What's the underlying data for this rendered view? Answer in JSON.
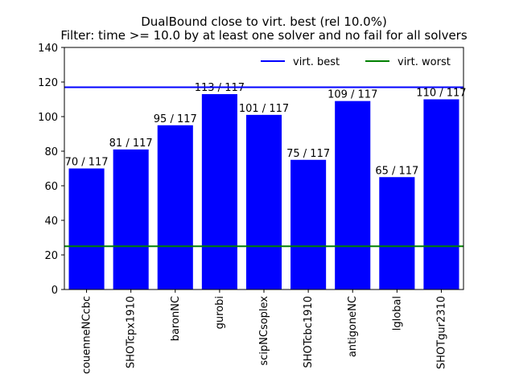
{
  "chart_data": {
    "type": "bar",
    "title": "DualBound close to virt. best (rel 10.0%)",
    "subtitle": "Filter: time >= 10.0 by at least one solver and no fail for all solvers",
    "categories": [
      "couenneNCcbc",
      "SHOTcpx1910",
      "baronNC",
      "gurobi",
      "scipNCsoplex",
      "SHOTcbc1910",
      "antigoneNC",
      "lglobal",
      "SHOTgur2310"
    ],
    "values": [
      70,
      81,
      95,
      113,
      101,
      75,
      109,
      65,
      110
    ],
    "bar_labels": [
      "70 / 117",
      "81 / 117",
      "95 / 117",
      "113 / 117",
      "101 / 117",
      "75 / 117",
      "109 / 117",
      "65 / 117",
      "110 / 117"
    ],
    "bar_color": "#0000ff",
    "ylim": [
      0,
      140
    ],
    "yticks": [
      "0",
      "20",
      "40",
      "60",
      "80",
      "100",
      "120",
      "140"
    ],
    "xlabel": "",
    "ylabel": "",
    "reference_lines": [
      {
        "name": "virt. best",
        "value": 117,
        "color": "#0000ff"
      },
      {
        "name": "virt. worst",
        "value": 25,
        "color": "#008000"
      }
    ],
    "legend_position": "top-right",
    "grid": false
  }
}
